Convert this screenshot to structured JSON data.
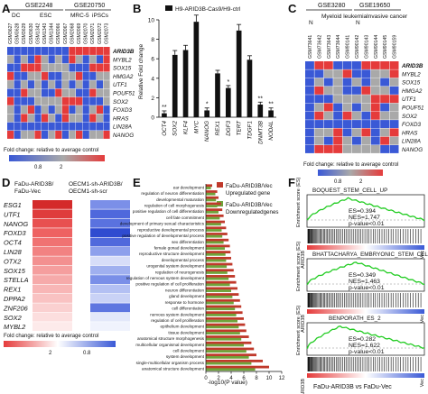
{
  "panels": {
    "A": {
      "letter": "A",
      "datasets": [
        "GSE2248",
        "GSE20750"
      ],
      "groups": [
        "DC",
        "ESC",
        "MRC-5",
        "iPSCs"
      ],
      "samples": [
        "GSM3627",
        "GSM3628",
        "GSM3629",
        "GSM3630",
        "GSM1342",
        "GSM1343",
        "GSM1344",
        "GSM2066",
        "GSM2067",
        "GSM2068",
        "GSM2069",
        "GSM2070",
        "GSM2071",
        "GSM2072",
        "GSM2073"
      ],
      "genes": [
        "ARID3B",
        "MYBL2",
        "SOX15",
        "HMGA2",
        "UTF1",
        "POUF51",
        "SOX2",
        "FOXD3",
        "HRAS",
        "LIN28A",
        "NANOG"
      ],
      "legend_label": "Fold change: relative to average control",
      "legend_ticks": [
        "0.8",
        "2"
      ]
    },
    "B": {
      "letter": "B",
      "legend": "H9-ARID3B-Cas9/H9-ctrl",
      "ylabel": "Relative Fold change",
      "yticks": [
        "0",
        "2",
        "4",
        "6",
        "8",
        "10"
      ]
    },
    "C": {
      "letter": "C",
      "datasets": [
        "GSE3280",
        "GSE19650"
      ],
      "groups": [
        "N",
        "Myeloid leukemia",
        "N",
        "Invasive cancer"
      ],
      "samples": [
        "GSM73641",
        "GSM73642",
        "GSM73643",
        "GSM73644",
        "GSM90141",
        "GSM90142",
        "GSM90143",
        "GSM90144",
        "GSM90145",
        "GSM90159"
      ],
      "genes": [
        "ARID3B",
        "MYBL2",
        "SOX15",
        "HMGA2",
        "UTF1",
        "POUF51",
        "SOX2",
        "FOXD3",
        "HRAS",
        "LIN28A",
        "NANOG"
      ],
      "legend_label": "Fold change: relative to average control",
      "legend_ticks": [
        "0.8",
        "2"
      ]
    },
    "D": {
      "letter": "D",
      "col1": "FaDu-ARID3B/\nFaDu-Vec",
      "col2": "OECM1-sh-ARID3B/\nOECM1-sh-scr",
      "genes": [
        "ESG1",
        "UTF1",
        "NANOG",
        "FOXD3",
        "OCT4",
        "LIN28",
        "OTX2",
        "SOX15",
        "STELLA",
        "REX1",
        "DPPA2",
        "ZNF206",
        "SOX2",
        "MYBL2"
      ],
      "legend_label": "Fold change: relative to average control",
      "legend_ticks": [
        "2",
        "0.8"
      ]
    },
    "E": {
      "letter": "E",
      "legend_up": "FaDu-ARID3B/Vec\nUpregulated gene",
      "legend_down": "FaDu-ARID3B/Vec\nDownregulatedgenes",
      "xlabel": "-log10(P value)",
      "xticks": [
        "0",
        "2",
        "4",
        "6",
        "8",
        "10",
        "12"
      ],
      "terms": [
        "ear development",
        "regulation of neuron differentiation",
        "developmental maturation",
        "regulation of cell morphogenesis",
        "positive regulation of cell differentiation",
        "cell fate commitment",
        "development of primary sexual characteristics",
        "reproductive developmental process",
        "positive regulation of developmental process",
        "sex differentiation",
        "female gonad development",
        "reproductive structure development",
        "developmental process",
        "urogenital system development",
        "regulation of neurogenesis",
        "regulation of nervous system development",
        "positive regulation of cell proliferation",
        "neuron differentiation",
        "gland development",
        "response to hormone",
        "cell differentiation",
        "nervous system development",
        "regulation of cell proliferation",
        "epithelium development",
        "tissue development",
        "anatomical structure morphogenesis",
        "multicellular organismal development",
        "cell development",
        "system development",
        "single-multicellular organism process",
        "anatomical structure development"
      ]
    },
    "F": {
      "letter": "F",
      "gsea": [
        {
          "title": "BOQUEST_STEM_CELL_UP",
          "es": "ES=0.394",
          "nes": "NES=1.747",
          "p": "p-value<0.01"
        },
        {
          "title": "BHATTACHARYA_EMBRYONIC_STEM_CELL",
          "es": "ES=0.349",
          "nes": "NES=1.463",
          "p": "p-value<0.01"
        },
        {
          "title": "BENPORATH_ES_2",
          "es": "ES=0.282",
          "nes": "NES=1.622",
          "p": "p-value<0.01"
        }
      ],
      "ylabel": "Enrichment score (ES)",
      "left_tag": "ARID3B",
      "right_tag": "Vec",
      "xlabel": "FaDu-ARID3B vs FaDu-Vec"
    }
  },
  "chart_data": [
    {
      "type": "bar",
      "title": "",
      "ylabel": "Relative Fold change",
      "ylim": [
        0,
        10
      ],
      "categories": [
        "OCT4",
        "SOX2",
        "KLF4",
        "MYC",
        "NANOG",
        "REX1",
        "DGF3",
        "TERT",
        "TDGF1",
        "DNMT3B",
        "NODAL"
      ],
      "series": [
        {
          "name": "H9-ARID3B-Cas9/H9-ctrl",
          "values": [
            0.4,
            6.4,
            6.9,
            9.8,
            0.7,
            4.5,
            3.0,
            8.9,
            5.9,
            1.3,
            0.7
          ]
        }
      ],
      "significance": [
        "**",
        "",
        "",
        "",
        "*",
        "",
        "*",
        "",
        "",
        "**",
        "**"
      ]
    },
    {
      "type": "bar",
      "orientation": "horizontal",
      "title": "",
      "xlabel": "-log10(P value)",
      "xlim": [
        0,
        12
      ],
      "categories": [
        "ear development",
        "regulation of neuron differentiation",
        "developmental maturation",
        "regulation of cell morphogenesis",
        "positive regulation of cell differentiation",
        "cell fate commitment",
        "development of primary sexual characteristics",
        "reproductive developmental process",
        "positive regulation of developmental process",
        "sex differentiation",
        "female gonad development",
        "reproductive structure development",
        "developmental process",
        "urogenital system development",
        "regulation of neurogenesis",
        "regulation of nervous system development",
        "positive regulation of cell proliferation",
        "neuron differentiation",
        "gland development",
        "response to hormone",
        "cell differentiation",
        "nervous system development",
        "regulation of cell proliferation",
        "epithelium development",
        "tissue development",
        "anatomical structure morphogenesis",
        "multicellular organismal development",
        "cell development",
        "system development",
        "single-multicellular organism process",
        "anatomical structure development"
      ],
      "series": [
        {
          "name": "FaDu-ARID3B/Vec Upregulated gene",
          "values": [
            1.0,
            1.8,
            2.0,
            2.4,
            2.6,
            2.8,
            3.0,
            3.2,
            3.4,
            3.6,
            3.8,
            3.9,
            4.0,
            4.2,
            4.4,
            4.6,
            4.8,
            5.0,
            5.2,
            5.4,
            5.6,
            5.8,
            6.0,
            6.2,
            6.4,
            6.8,
            7.2,
            7.6,
            8.0,
            9.0,
            10.0
          ]
        },
        {
          "name": "FaDu-ARID3B/Vec Downregulatedgenes",
          "values": [
            0.8,
            1.5,
            1.6,
            1.8,
            2.0,
            2.2,
            2.4,
            2.5,
            2.6,
            2.8,
            3.0,
            3.1,
            3.2,
            3.3,
            3.4,
            3.6,
            3.8,
            4.0,
            4.2,
            4.4,
            4.6,
            4.8,
            5.0,
            5.2,
            5.4,
            5.6,
            6.0,
            6.4,
            6.8,
            7.2,
            7.8
          ]
        }
      ]
    }
  ],
  "colors": {
    "red": "#e53b3b",
    "blue": "#3a59d6",
    "gray": "#a9a9a9",
    "white": "#ffffff",
    "up_bar": "#c0392b",
    "down_bar": "#6fa33a",
    "gsea_line": "#22cc22"
  }
}
